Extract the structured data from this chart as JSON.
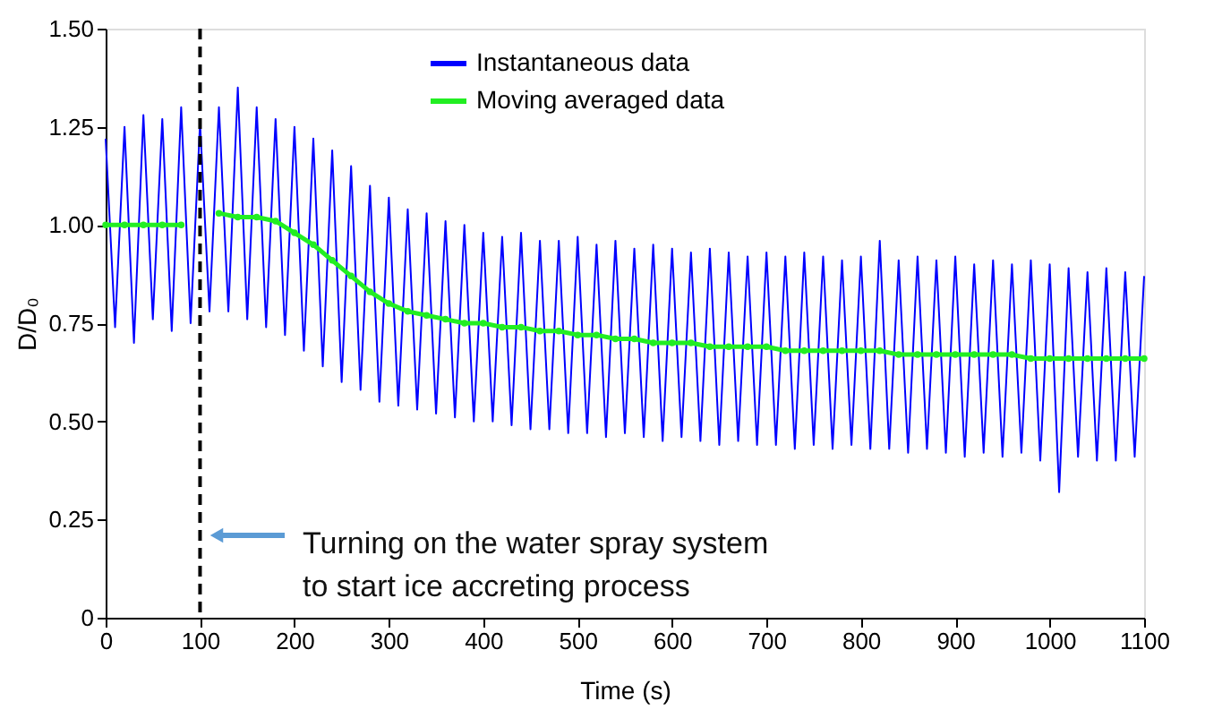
{
  "chart_data": {
    "type": "line",
    "xlabel": "Time  (s)",
    "ylabel": "D/D₀",
    "xlim": [
      0,
      1100
    ],
    "ylim": [
      0,
      1.5
    ],
    "xticks": [
      0,
      100,
      200,
      300,
      400,
      500,
      600,
      700,
      800,
      900,
      1000,
      1100
    ],
    "yticks": [
      0,
      0.25,
      {
        "value": 0.5,
        "label": "0.50"
      },
      0.75,
      {
        "value": 1,
        "label": "1.00"
      },
      1.25,
      {
        "value": 1.5,
        "label": "1.50"
      }
    ],
    "grid": false,
    "legend": "top",
    "series": [
      {
        "name": "Instantaneous data",
        "color": "#0000ff",
        "marker": "none",
        "x": [
          0,
          10,
          20,
          30,
          40,
          50,
          60,
          70,
          80,
          90,
          100,
          110,
          120,
          130,
          140,
          150,
          160,
          170,
          180,
          190,
          200,
          210,
          220,
          230,
          240,
          250,
          260,
          270,
          280,
          290,
          300,
          310,
          320,
          330,
          340,
          350,
          360,
          370,
          380,
          390,
          400,
          410,
          420,
          430,
          440,
          450,
          460,
          470,
          480,
          490,
          500,
          510,
          520,
          530,
          540,
          550,
          560,
          570,
          580,
          590,
          600,
          610,
          620,
          630,
          640,
          650,
          660,
          670,
          680,
          690,
          700,
          710,
          720,
          730,
          740,
          750,
          760,
          770,
          780,
          790,
          800,
          810,
          820,
          830,
          840,
          850,
          860,
          870,
          880,
          890,
          900,
          910,
          920,
          930,
          940,
          950,
          960,
          970,
          980,
          990,
          1000,
          1010,
          1020,
          1030,
          1040,
          1050,
          1060,
          1070,
          1080,
          1090,
          1100
        ],
        "values": [
          1.22,
          0.74,
          1.25,
          0.7,
          1.28,
          0.76,
          1.27,
          0.73,
          1.3,
          0.75,
          1.26,
          0.78,
          1.3,
          0.78,
          1.35,
          0.76,
          1.3,
          0.74,
          1.27,
          0.72,
          1.25,
          0.68,
          1.22,
          0.64,
          1.19,
          0.6,
          1.15,
          0.58,
          1.1,
          0.55,
          1.07,
          0.54,
          1.04,
          0.53,
          1.03,
          0.52,
          1.01,
          0.51,
          1.0,
          0.5,
          0.98,
          0.5,
          0.97,
          0.49,
          0.98,
          0.48,
          0.96,
          0.48,
          0.96,
          0.47,
          0.97,
          0.47,
          0.95,
          0.46,
          0.96,
          0.47,
          0.94,
          0.46,
          0.95,
          0.45,
          0.94,
          0.46,
          0.93,
          0.45,
          0.94,
          0.44,
          0.93,
          0.45,
          0.92,
          0.44,
          0.93,
          0.44,
          0.92,
          0.43,
          0.93,
          0.44,
          0.92,
          0.43,
          0.91,
          0.44,
          0.92,
          0.43,
          0.96,
          0.43,
          0.91,
          0.42,
          0.92,
          0.43,
          0.91,
          0.42,
          0.92,
          0.41,
          0.9,
          0.42,
          0.91,
          0.41,
          0.9,
          0.42,
          0.91,
          0.4,
          0.9,
          0.32,
          0.89,
          0.41,
          0.88,
          0.4,
          0.89,
          0.4,
          0.88,
          0.41,
          0.87
        ]
      },
      {
        "name": "Moving averaged data",
        "color": "#22ee22",
        "marker": "circle",
        "x": [
          0,
          20,
          40,
          60,
          80,
          100,
          120,
          140,
          160,
          180,
          200,
          220,
          240,
          260,
          280,
          300,
          320,
          340,
          360,
          380,
          400,
          420,
          440,
          460,
          480,
          500,
          520,
          540,
          560,
          580,
          600,
          620,
          640,
          660,
          680,
          700,
          720,
          740,
          760,
          780,
          800,
          820,
          840,
          860,
          880,
          900,
          920,
          940,
          960,
          980,
          1000,
          1020,
          1040,
          1060,
          1080,
          1100
        ],
        "values": [
          1.0,
          1.0,
          1.0,
          1.0,
          1.0,
          null,
          1.03,
          1.02,
          1.02,
          1.01,
          0.98,
          0.95,
          0.91,
          0.87,
          0.83,
          0.8,
          0.78,
          0.77,
          0.76,
          0.75,
          0.75,
          0.74,
          0.74,
          0.73,
          0.73,
          0.72,
          0.72,
          0.71,
          0.71,
          0.7,
          0.7,
          0.7,
          0.69,
          0.69,
          0.69,
          0.69,
          0.68,
          0.68,
          0.68,
          0.68,
          0.68,
          0.68,
          0.67,
          0.67,
          0.67,
          0.67,
          0.67,
          0.67,
          0.67,
          0.66,
          0.66,
          0.66,
          0.66,
          0.66,
          0.66,
          0.66
        ]
      }
    ],
    "ref_lines": [
      {
        "axis": "x",
        "value": 100,
        "color": "#000000",
        "line_style": "dashed"
      }
    ],
    "annotations": [
      "Turning on the water spray system\nto start ice accreting process"
    ]
  }
}
